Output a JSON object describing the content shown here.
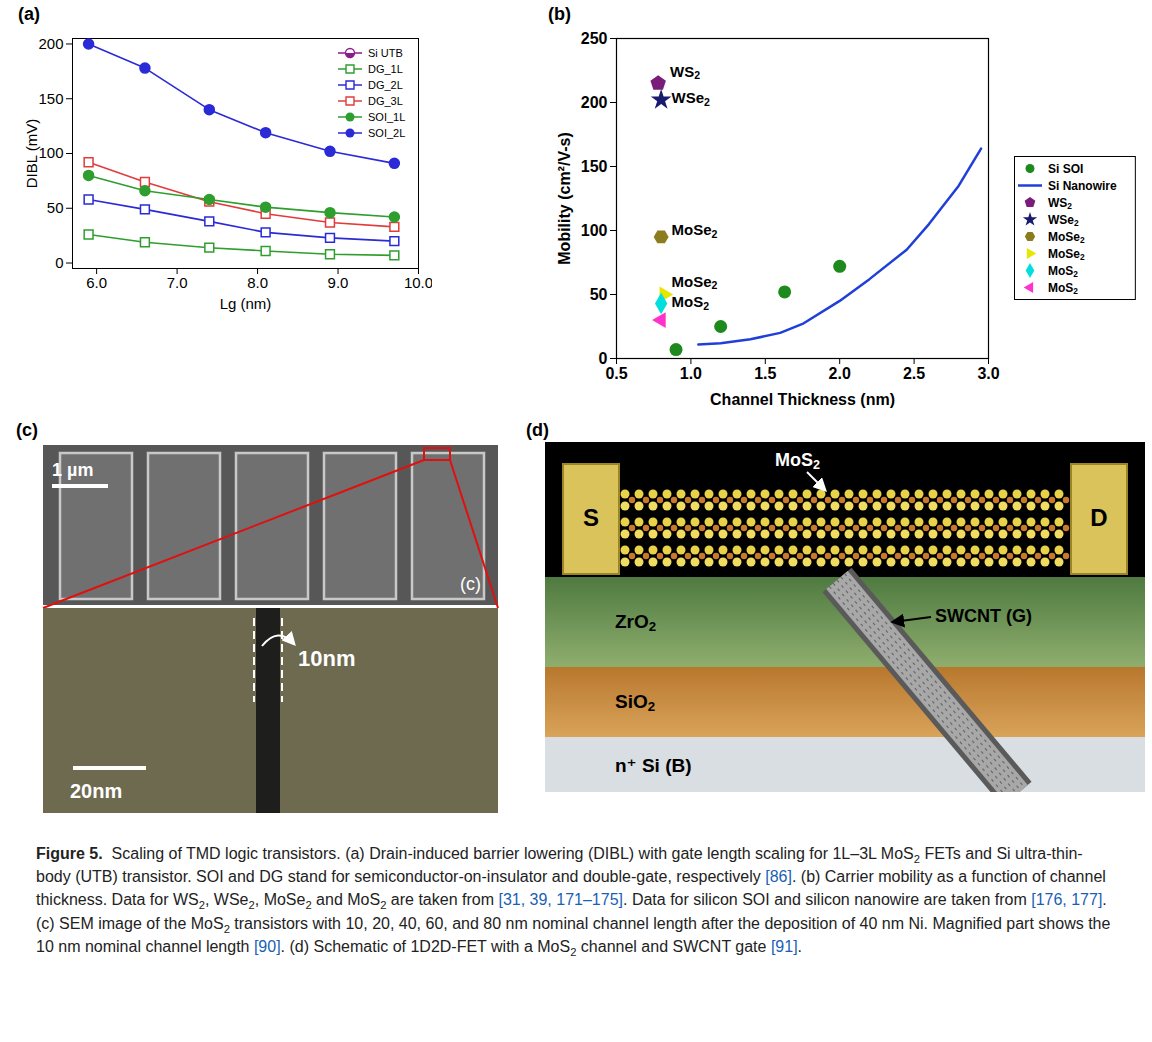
{
  "chart_data": [
    {
      "panel": "(a)",
      "type": "line",
      "x_label": "Lg (nm)",
      "y_label": "DIBL (mV)",
      "x": [
        5.9,
        6.6,
        7.4,
        8.1,
        8.9,
        9.7
      ],
      "series": [
        {
          "name": "Si UTB",
          "color": "#8b1a8b",
          "marker": "half-circle",
          "values": [
            null,
            null,
            null,
            null,
            null,
            null
          ]
        },
        {
          "name": "DG_1L",
          "color": "#2e9e2e",
          "marker": "open-square",
          "values": [
            26,
            19,
            14,
            11,
            8,
            7
          ]
        },
        {
          "name": "DG_2L",
          "color": "#2a2ad6",
          "marker": "open-square",
          "values": [
            58,
            49,
            38,
            28,
            23,
            20
          ]
        },
        {
          "name": "DG_3L",
          "color": "#e03c3c",
          "marker": "open-square",
          "values": [
            92,
            74,
            56,
            45,
            37,
            33
          ]
        },
        {
          "name": "SOI_1L",
          "color": "#2e9e2e",
          "marker": "circle",
          "values": [
            80,
            66,
            58,
            51,
            46,
            42
          ]
        },
        {
          "name": "SOI_2L",
          "color": "#2a2ad6",
          "marker": "circle",
          "values": [
            200,
            178,
            140,
            119,
            102,
            91
          ]
        }
      ],
      "xlim": [
        5.7,
        10
      ],
      "xticks": [
        6,
        7,
        8,
        9,
        10
      ],
      "ylim": [
        -5,
        205
      ],
      "yticks": [
        0,
        50,
        100,
        150,
        200
      ],
      "grid": false,
      "legend": "top-right"
    },
    {
      "panel": "(b)",
      "type": "scatter",
      "x_label": "Channel Thickness (nm)",
      "y_label": "Mobility (cm²/V-s)",
      "series": [
        {
          "name": "Si SOI",
          "color": "#1e8a1e",
          "marker": "circle",
          "x": [
            0.9,
            1.2,
            1.63,
            2.0
          ],
          "values": [
            7,
            25,
            52,
            72
          ]
        },
        {
          "name": "Si Nanowire",
          "type": "line",
          "color": "#1f3fd8",
          "x": [
            1.05,
            1.2,
            1.4,
            1.6,
            1.75,
            2.0,
            2.2,
            2.45,
            2.6,
            2.8,
            2.95
          ],
          "values": [
            11,
            12,
            15,
            20,
            27,
            45,
            62,
            85,
            105,
            135,
            164
          ]
        },
        {
          "name": "WS2",
          "color": "#7b1c7b",
          "marker": "pentagon",
          "x": [
            0.78
          ],
          "values": [
            215
          ]
        },
        {
          "name": "WSe2",
          "color": "#1a1a6e",
          "marker": "star",
          "x": [
            0.8
          ],
          "values": [
            202
          ]
        },
        {
          "name": "MoSe2",
          "color": "#8b7d1e",
          "marker": "hexagon",
          "x": [
            0.8
          ],
          "values": [
            95
          ]
        },
        {
          "name": "MoSe2",
          "color": "#e6e600",
          "marker": "triangle-right",
          "x": [
            0.82
          ],
          "values": [
            50
          ]
        },
        {
          "name": "MoS2",
          "color": "#00dede",
          "marker": "diamond",
          "x": [
            0.8
          ],
          "values": [
            43
          ]
        },
        {
          "name": "MoS2",
          "color": "#ff33cc",
          "marker": "triangle-left",
          "x": [
            0.8
          ],
          "values": [
            30
          ]
        }
      ],
      "annotations": [
        {
          "text": "WS2",
          "x": 0.86,
          "y": 224
        },
        {
          "text": "WSe2",
          "x": 0.87,
          "y": 203
        },
        {
          "text": "MoSe2",
          "x": 0.87,
          "y": 100
        },
        {
          "text": "MoSe2",
          "x": 0.87,
          "y": 60
        },
        {
          "text": "MoS2",
          "x": 0.87,
          "y": 44
        }
      ],
      "xlim": [
        0.5,
        3.0
      ],
      "xticks": [
        0.5,
        {
          "value": 1,
          "label": "1.0"
        },
        1.5,
        {
          "value": 2,
          "label": "2.0"
        },
        2.5,
        {
          "value": 3,
          "label": "3.0"
        }
      ],
      "ylim": [
        0,
        250
      ],
      "yticks": [
        0,
        50,
        100,
        150,
        200,
        250
      ],
      "grid": false,
      "legend": "right"
    }
  ],
  "image_panels": [
    {
      "panel": "(c)",
      "type": "micrograph",
      "scale_bar": "1 µm",
      "inset_label": "(c)",
      "zoom_scale_bar": "20nm",
      "zoom_label": "10nm"
    },
    {
      "panel": "(d)",
      "type": "schematic",
      "labels": {
        "channel": "MoS2",
        "source": "S",
        "drain": "D",
        "dielectric": "ZrO2",
        "gate": "SWCNT (G)",
        "oxide": "SiO2",
        "substrate": "n⁺ Si (B)"
      }
    }
  ],
  "caption": {
    "label": "Figure 5.",
    "text": "Scaling of TMD logic transistors. (a) Drain-induced barrier lowering (DIBL) with gate length scaling for 1L–3L MoS2 FETs and Si ultra-thin-body (UTB) transistor. SOI and DG stand for semiconductor-on-insulator and double-gate, respectively [86]. (b) Carrier mobility as a function of channel thickness. Data for WS2, WSe2, MoSe2 and MoS2 are taken from [31, 39, 171–175]. Data for silicon SOI and silicon nanowire are taken from [176, 177]. (c) SEM image of the MoS2 transistors with 10, 20, 40, 60, and 80 nm nominal channel length after the deposition of 40 nm Ni. Magnified part shows the 10 nm nominal channel length [90]. (d) Schematic of 1D2D-FET with a MoS2 channel and SWCNT gate [91]."
  }
}
